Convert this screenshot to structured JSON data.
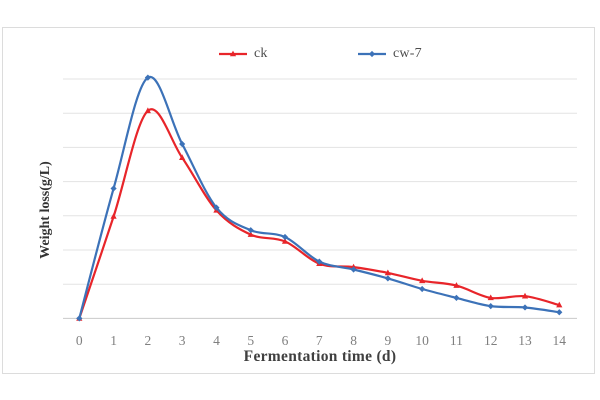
{
  "chart_data": {
    "type": "line",
    "title": "",
    "xlabel": "Fermentation time (d)",
    "ylabel": "Weight loss(g/L)",
    "x": [
      0,
      1,
      2,
      3,
      4,
      5,
      6,
      7,
      8,
      9,
      10,
      11,
      12,
      13,
      14
    ],
    "x_tick_labels": [
      "0",
      "1",
      "2",
      "3",
      "4",
      "5",
      "6",
      "7",
      "8",
      "9",
      "10",
      "11",
      "12",
      "13",
      "14"
    ],
    "ylim": [
      0,
      7.5
    ],
    "y_gridlines": [
      1,
      2,
      3,
      4,
      5,
      6,
      7
    ],
    "y_tick_labels_shown": false,
    "grid": "horizontal",
    "line_style": "smooth",
    "legend_position": "top-center",
    "series": [
      {
        "name": "ck",
        "color": "#e8252a",
        "marker": "triangle",
        "values": [
          0,
          2.98,
          6.07,
          4.7,
          3.16,
          2.45,
          2.25,
          1.6,
          1.5,
          1.33,
          1.1,
          0.96,
          0.6,
          0.65,
          0.39
        ]
      },
      {
        "name": "cw-7",
        "color": "#3c72b8",
        "marker": "diamond",
        "values": [
          0,
          3.8,
          7.04,
          5.1,
          3.24,
          2.58,
          2.38,
          1.66,
          1.43,
          1.17,
          0.86,
          0.6,
          0.36,
          0.32,
          0.18
        ]
      }
    ]
  },
  "style": {
    "grid_color": "#e3e3e3",
    "axis_color": "#c9c9c9",
    "tick_label_color": "#7f7f7f",
    "axis_title_color": "#404040",
    "legend_text_color": "#4d4d4d",
    "border_color": "#dcdcdc",
    "background": "#ffffff"
  }
}
